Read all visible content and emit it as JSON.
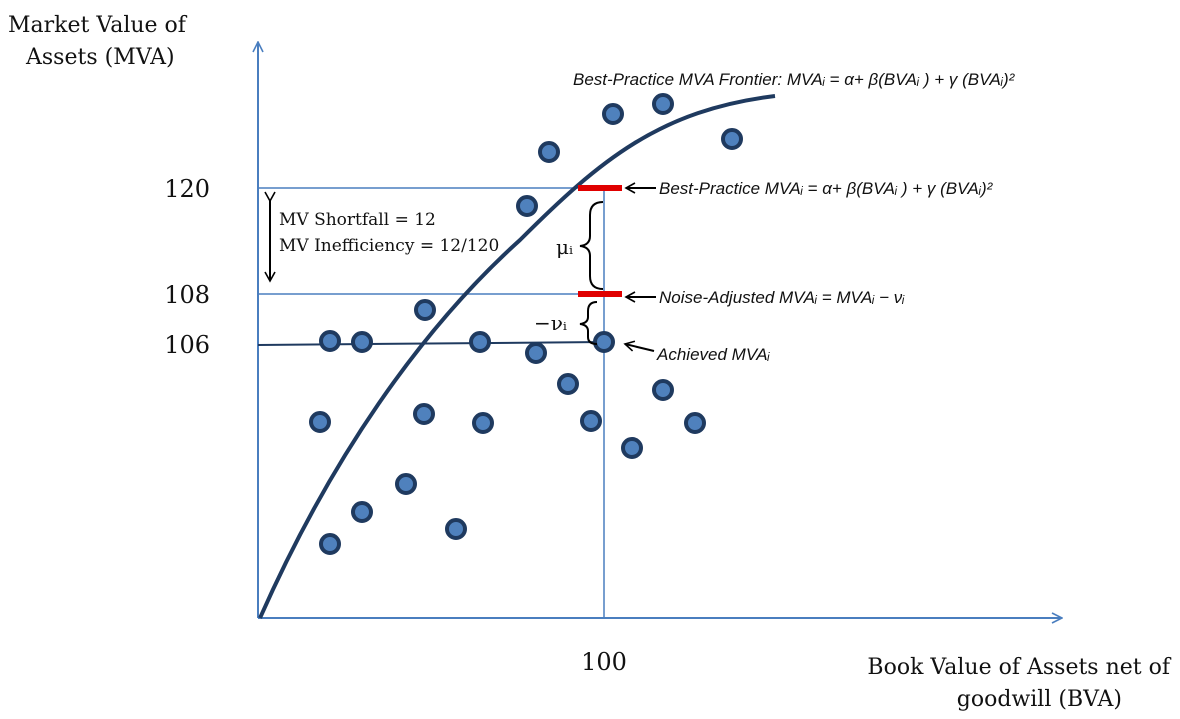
{
  "y_axis_label": {
    "line1": "Market Value of",
    "line2": "Assets (MVA)"
  },
  "x_axis_label": {
    "line1": "Book Value of Assets net of",
    "line2": "goodwill (BVA)"
  },
  "ticks": {
    "y": [
      "120",
      "108",
      "106"
    ],
    "x": [
      "100"
    ]
  },
  "frontier_label": "Best-Practice MVA Frontier: MVAᵢ = α+ β(BVAᵢ ) + γ (BVAᵢ)²",
  "best_practice_label": "Best-Practice MVAᵢ = α+ β(BVAᵢ ) + γ (BVAᵢ)²",
  "noise_adjusted_label": "Noise-Adjusted MVAᵢ = MVAᵢ − νᵢ",
  "achieved_label": "Achieved MVAᵢ",
  "shortfall_label": "MV Shortfall = 12",
  "inefficiency_label": "MV Inefficiency = 12/120",
  "mu_label": "μᵢ",
  "nu_label": "−νᵢ",
  "colors": {
    "axis": "#4a7ebf",
    "frontier": "#1f3a5f",
    "dot_fill": "#4f81bd",
    "dot_stroke": "#1f3a5f",
    "marker": "#e00000"
  }
}
